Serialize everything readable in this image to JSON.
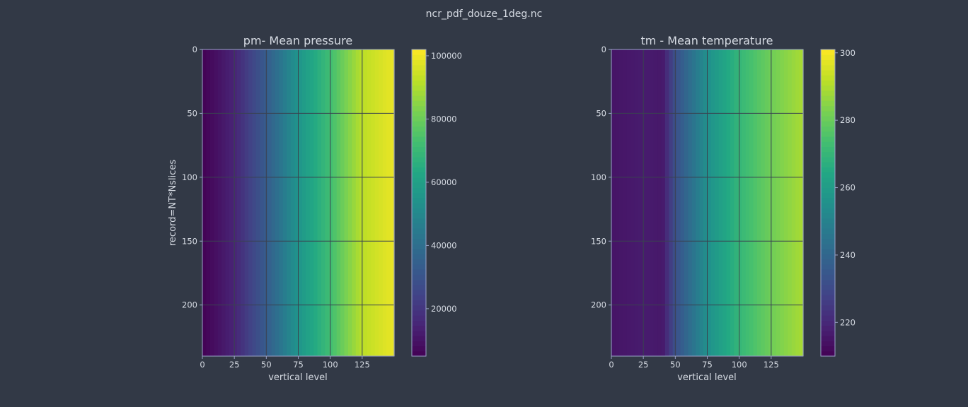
{
  "figure": {
    "title": "ncr_pdf_douze_1deg.nc",
    "colors": {
      "background": "#323946",
      "text": "#d6dbe3",
      "grid": "#3a4250",
      "frame": "#9aa2c8"
    },
    "colormap": "viridis"
  },
  "chart_data": [
    {
      "type": "heatmap",
      "title": "pm- Mean pressure",
      "xlabel": "vertical level",
      "ylabel": "record=NT*Nslices",
      "xlim": [
        0,
        150
      ],
      "ylim": [
        240,
        0
      ],
      "x_ticks": [
        0,
        25,
        50,
        75,
        100,
        125
      ],
      "y_ticks": [
        0,
        50,
        100,
        150,
        200
      ],
      "grid": true,
      "n_levels": 150,
      "n_records": 240,
      "colorbar": {
        "min": 5000,
        "max": 102000,
        "ticks": [
          20000,
          40000,
          60000,
          80000,
          100000
        ]
      },
      "value_by_level": [
        {
          "level": 0,
          "value": 5000
        },
        {
          "level": 25,
          "value": 15000
        },
        {
          "level": 50,
          "value": 33000
        },
        {
          "level": 75,
          "value": 55000
        },
        {
          "level": 100,
          "value": 72000
        },
        {
          "level": 112,
          "value": 82000
        },
        {
          "level": 125,
          "value": 92000
        },
        {
          "level": 149,
          "value": 99000
        }
      ]
    },
    {
      "type": "heatmap",
      "title": "tm - Mean temperature",
      "xlabel": "vertical level",
      "ylabel": "",
      "xlim": [
        0,
        150
      ],
      "ylim": [
        240,
        0
      ],
      "x_ticks": [
        0,
        25,
        50,
        75,
        100,
        125
      ],
      "y_ticks": [
        0,
        50,
        100,
        150,
        200
      ],
      "grid": true,
      "n_levels": 150,
      "n_records": 240,
      "colorbar": {
        "min": 210,
        "max": 301,
        "ticks": [
          220,
          240,
          260,
          280,
          300
        ]
      },
      "value_by_level": [
        {
          "level": 0,
          "value": 215
        },
        {
          "level": 25,
          "value": 217
        },
        {
          "level": 40,
          "value": 216
        },
        {
          "level": 50,
          "value": 232
        },
        {
          "level": 75,
          "value": 255
        },
        {
          "level": 100,
          "value": 270
        },
        {
          "level": 125,
          "value": 281
        },
        {
          "level": 149,
          "value": 289
        }
      ]
    }
  ]
}
